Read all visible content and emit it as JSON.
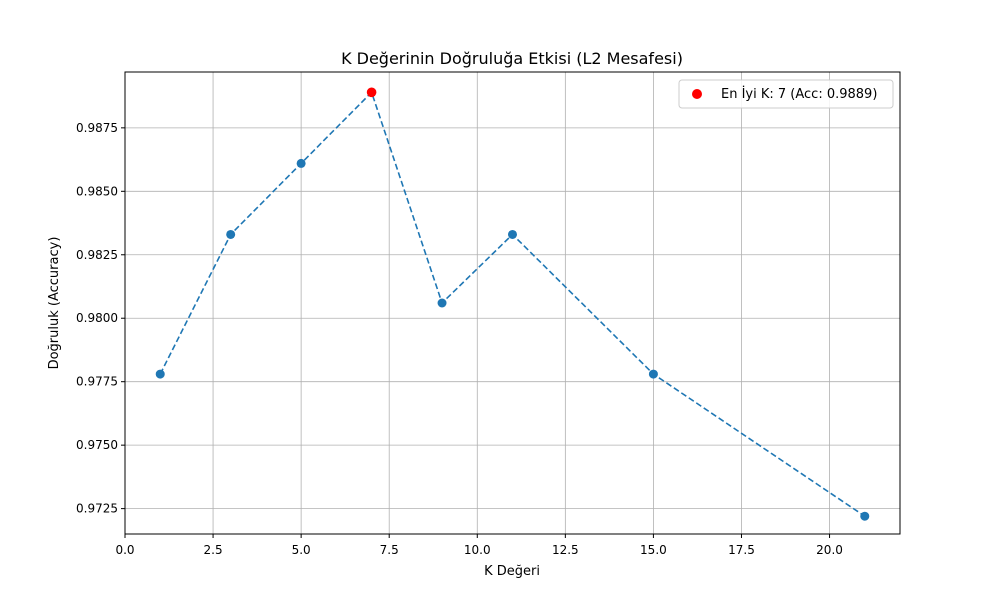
{
  "chart_data": {
    "type": "line",
    "title": "K Değerinin Doğruluğa Etkisi (L2 Mesafesi)",
    "xlabel": "K Değeri",
    "ylabel": "Doğruluk (Accuracy)",
    "xlim": [
      0,
      22.0
    ],
    "ylim": [
      0.9715,
      0.9897
    ],
    "x_ticks": [
      0.0,
      2.5,
      5.0,
      7.5,
      10.0,
      12.5,
      15.0,
      17.5,
      20.0
    ],
    "x_tick_labels": [
      "0.0",
      "2.5",
      "5.0",
      "7.5",
      "10.0",
      "12.5",
      "15.0",
      "17.5",
      "20.0"
    ],
    "y_ticks": [
      0.9725,
      0.975,
      0.9775,
      0.98,
      0.9825,
      0.985,
      0.9875
    ],
    "y_tick_labels": [
      "0.9725",
      "0.9750",
      "0.9775",
      "0.9800",
      "0.9825",
      "0.9850",
      "0.9875"
    ],
    "grid": true,
    "legend_position": "top-right",
    "series": [
      {
        "color": "#1f77b4",
        "line_style": "dashed",
        "marker": "circle",
        "x": [
          1,
          3,
          5,
          7,
          9,
          11,
          15,
          21
        ],
        "y": [
          0.9778,
          0.9833,
          0.9861,
          0.9889,
          0.9806,
          0.9833,
          0.9778,
          0.9722
        ]
      }
    ],
    "highlight": {
      "name": "En İyi K: 7 (Acc: 0.9889)",
      "x": 7,
      "y": 0.9889,
      "color": "#ff0000",
      "marker": "circle"
    }
  }
}
